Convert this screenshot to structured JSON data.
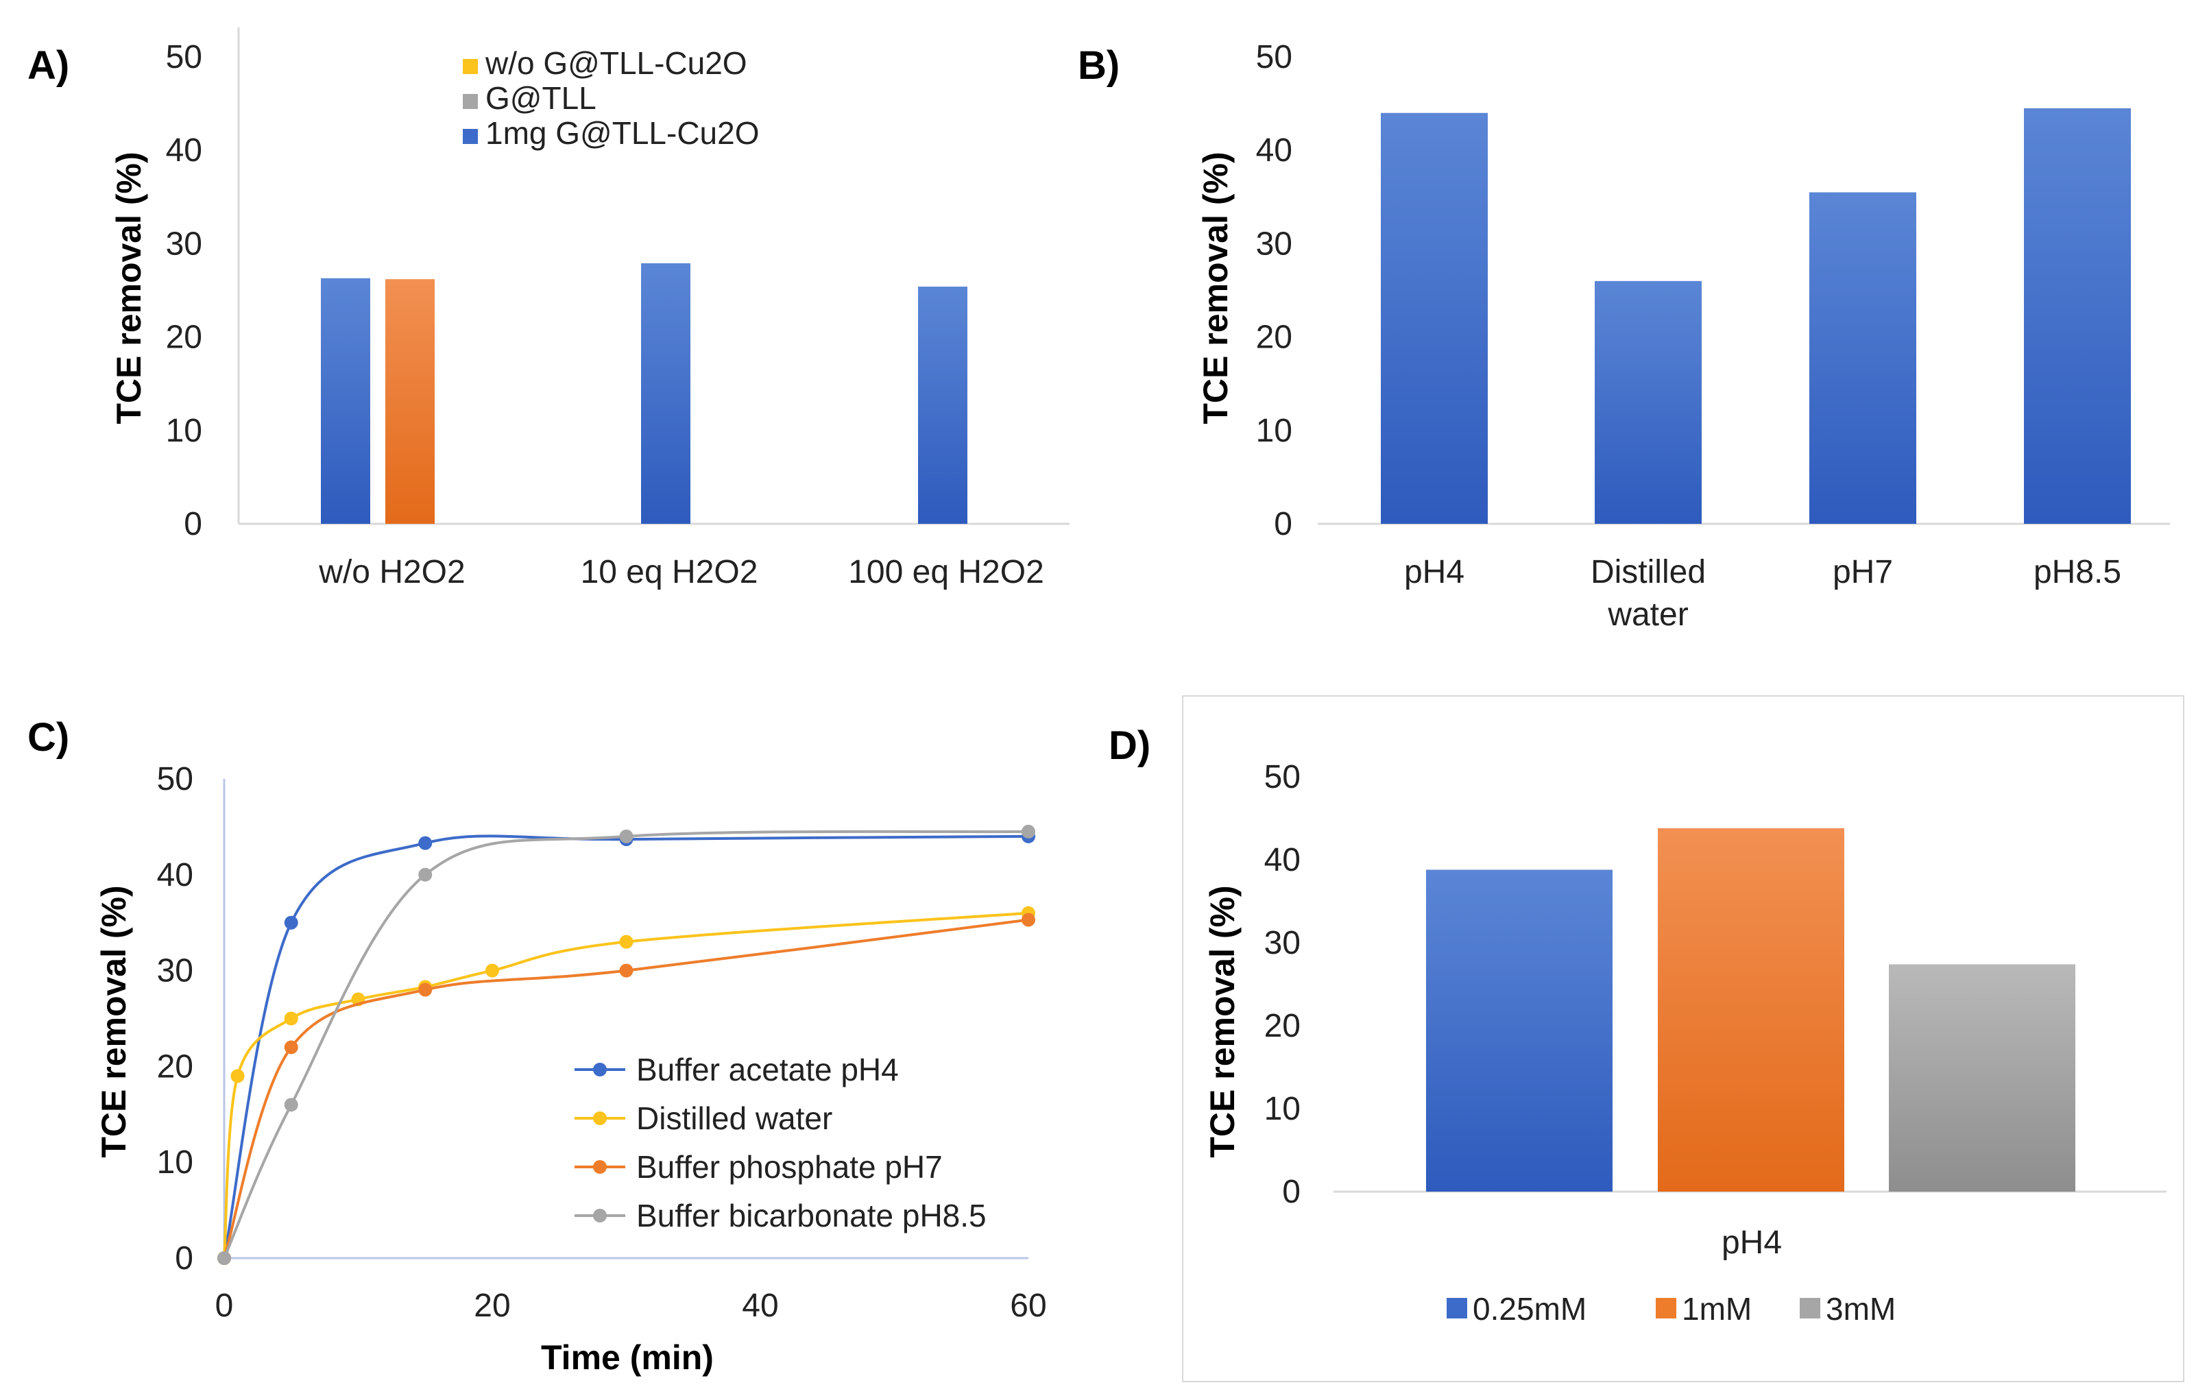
{
  "colors": {
    "blue": "#3d6bc9",
    "blue_light": "#5b86d6",
    "blue_dark": "#2e5bbd",
    "orange": "#ee7d2b",
    "orange_light": "#f29052",
    "orange_dark": "#e36a1a",
    "gray": "#a6a6a6",
    "gray_light": "#b9b9b9",
    "gray_dark": "#8e8e8e",
    "yellow": "#fbc31b",
    "axis": "#d9d9d9"
  },
  "chart_data": [
    {
      "panel": "A)",
      "type": "bar",
      "ylabel": "TCE removal (%)",
      "ylim": [
        0,
        50
      ],
      "yticks": [
        "0",
        "10",
        "20",
        "30",
        "40",
        "50"
      ],
      "categories": [
        "w/o H2O2",
        "10 eq H2O2",
        "100 eq H2O2"
      ],
      "series": [
        {
          "name": "w/o G@TLL-Cu2O",
          "color": "yellow",
          "values": [
            null,
            null,
            null
          ]
        },
        {
          "name": "G@TLL",
          "color": "gray",
          "values": [
            null,
            null,
            null
          ]
        },
        {
          "name": "1mg G@TLL-Cu2O",
          "color": "blue",
          "values": [
            26.3,
            27.9,
            25.4
          ]
        }
      ],
      "extra_bar": {
        "category": "w/o H2O2",
        "color": "orange",
        "value": 26.2
      },
      "legend": [
        "w/o G@TLL-Cu2O",
        "G@TLL",
        "1mg G@TLL-Cu2O"
      ],
      "legend_position": "top"
    },
    {
      "panel": "B)",
      "type": "bar",
      "ylabel": "TCE removal (%)",
      "ylim": [
        0,
        50
      ],
      "yticks": [
        "0",
        "10",
        "20",
        "30",
        "40",
        "50"
      ],
      "categories": [
        [
          "pH4"
        ],
        [
          "Distilled",
          "water"
        ],
        [
          "pH7"
        ],
        [
          "pH8.5"
        ]
      ],
      "values": [
        44.0,
        26.0,
        35.5,
        44.5
      ]
    },
    {
      "panel": "C)",
      "type": "line",
      "xlabel": "Time (min)",
      "ylabel": "TCE removal (%)",
      "xlim": [
        0,
        60
      ],
      "ylim": [
        0,
        50
      ],
      "xticks": [
        "0",
        "20",
        "40",
        "60"
      ],
      "yticks": [
        "0",
        "10",
        "20",
        "30",
        "40",
        "50"
      ],
      "series": [
        {
          "name": "Buffer acetate pH4",
          "color": "blue",
          "x": [
            0,
            5,
            15,
            30,
            60
          ],
          "y": [
            0,
            35,
            43.3,
            43.7,
            44
          ]
        },
        {
          "name": "Distilled water",
          "color": "yellow",
          "x": [
            0,
            1,
            5,
            10,
            15,
            20,
            30,
            60
          ],
          "y": [
            0,
            19,
            25,
            27,
            28.3,
            30,
            33,
            36
          ]
        },
        {
          "name": "Buffer phosphate pH7",
          "color": "orange",
          "x": [
            0,
            5,
            15,
            30,
            60
          ],
          "y": [
            0,
            22,
            28,
            30,
            35.3
          ]
        },
        {
          "name": "Buffer bicarbonate pH8.5",
          "color": "gray",
          "x": [
            0,
            5,
            15,
            30,
            60
          ],
          "y": [
            0,
            16,
            40,
            44,
            44.5
          ]
        }
      ],
      "legend_position": "bottom-right"
    },
    {
      "panel": "D)",
      "type": "bar",
      "ylabel": "TCE removal (%)",
      "ylim": [
        0,
        50
      ],
      "yticks": [
        "0",
        "10",
        "20",
        "30",
        "40",
        "50"
      ],
      "categories": [
        "pH4"
      ],
      "series": [
        {
          "name": "0.25mM",
          "color": "blue",
          "values": [
            38.8
          ]
        },
        {
          "name": "1mM",
          "color": "orange",
          "values": [
            43.8
          ]
        },
        {
          "name": "3mM",
          "color": "gray",
          "values": [
            27.4
          ]
        }
      ],
      "legend_position": "bottom"
    }
  ]
}
